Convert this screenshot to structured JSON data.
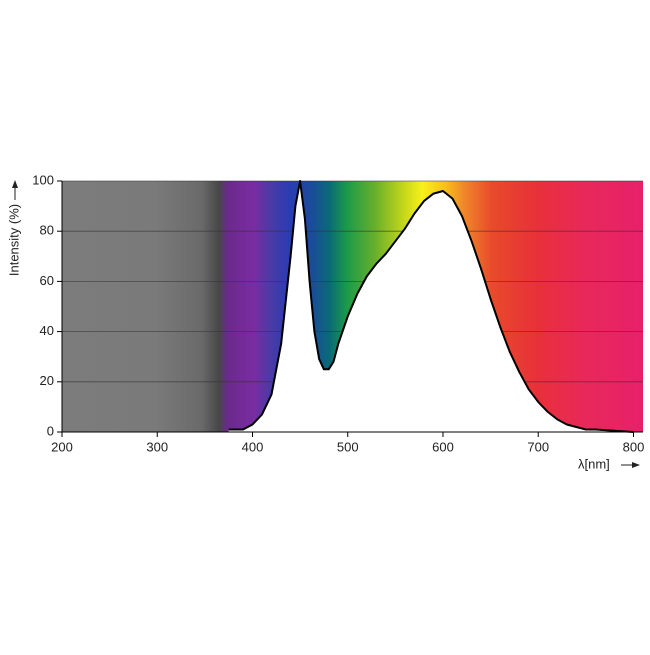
{
  "chart_data": {
    "type": "area",
    "x_label": "λ[nm]",
    "y_label": "Intensity (%)",
    "x": [
      375,
      390,
      400,
      410,
      420,
      430,
      440,
      445,
      450,
      455,
      460,
      465,
      470,
      475,
      480,
      485,
      490,
      500,
      510,
      520,
      530,
      540,
      550,
      560,
      570,
      580,
      590,
      600,
      610,
      620,
      630,
      640,
      650,
      660,
      670,
      680,
      690,
      700,
      710,
      720,
      730,
      740,
      750,
      760,
      780,
      800
    ],
    "y": [
      1,
      1,
      3,
      7,
      15,
      35,
      70,
      90,
      100,
      85,
      60,
      40,
      29,
      25,
      25,
      28,
      35,
      46,
      55,
      62,
      67,
      71,
      76,
      81,
      87,
      92,
      95,
      96,
      93,
      86,
      76,
      65,
      53,
      42,
      32,
      24,
      17,
      12,
      8,
      5,
      3,
      2,
      1,
      1,
      0.5,
      0
    ],
    "xlim": [
      200,
      810
    ],
    "ylim": [
      0,
      100
    ],
    "xticks": [
      200,
      300,
      400,
      500,
      600,
      700,
      800
    ],
    "yticks": [
      0,
      20,
      40,
      60,
      80,
      100
    ],
    "grid": true,
    "line_color": "#000000",
    "fill_color": "#ffffff"
  }
}
